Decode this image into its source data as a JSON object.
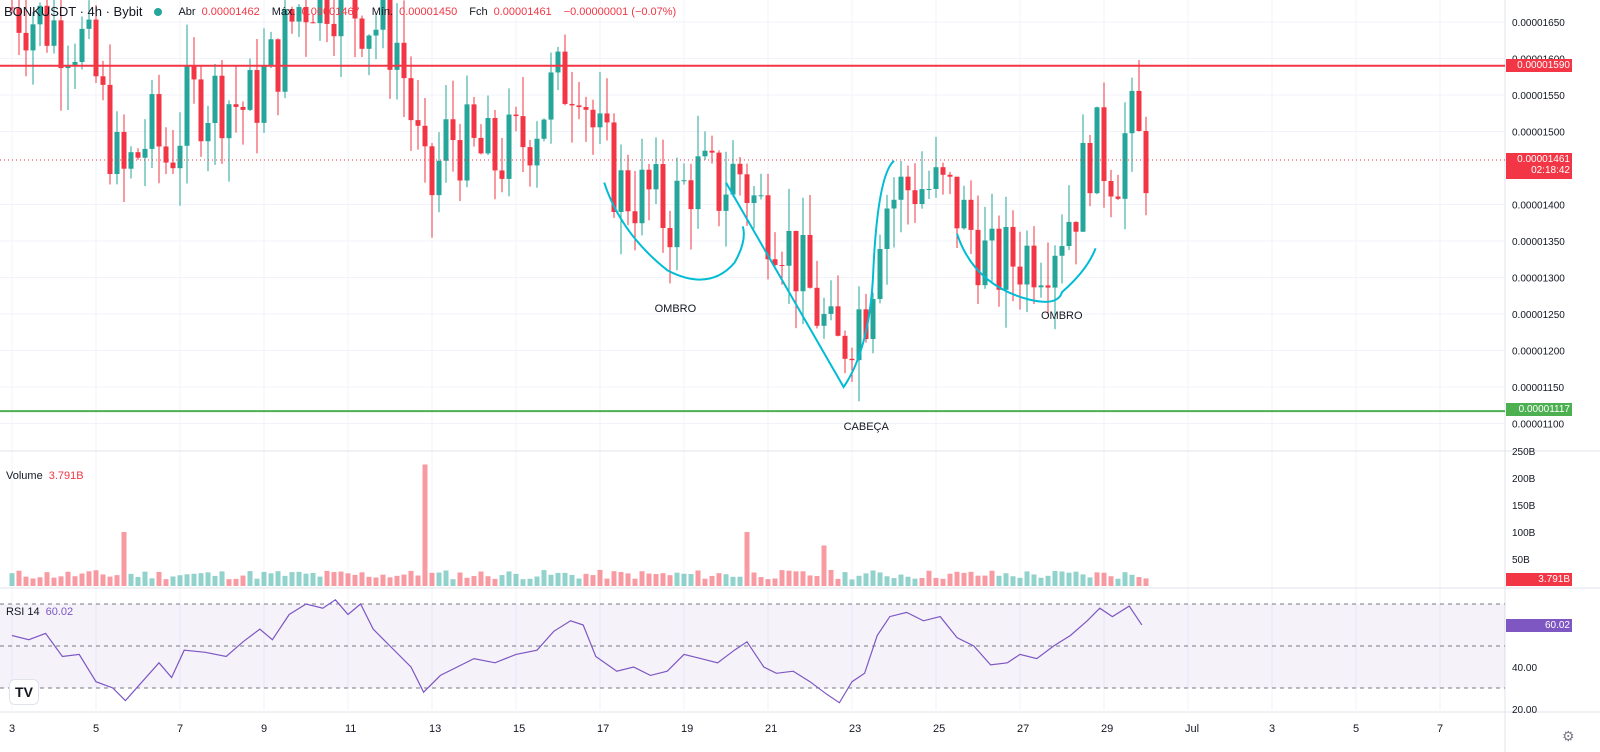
{
  "header": {
    "symbol": "BONKUSDT · 4h · Bybit",
    "open_label": "Abr",
    "open_value": "0.00001462",
    "high_label": "Máx.",
    "high_value": "0.00001467",
    "low_label": "Mín.",
    "low_value": "0.00001450",
    "close_label": "Fch",
    "close_value": "0.00001461",
    "change": "−0.00000001 (−0.07%)"
  },
  "volume_pane": {
    "label": "Volume",
    "value": "3.791B",
    "tag": "3.791B"
  },
  "rsi_pane": {
    "label": "RSI 14",
    "value": "60.02",
    "tag": "60.02"
  },
  "price_tags": {
    "resistance": "0.00001590",
    "current": "0.00001461",
    "countdown": "02:18:42",
    "support": "0.00001117"
  },
  "annotations": {
    "left_shoulder": "OMBRO",
    "head": "CABEÇA",
    "right_shoulder": "OMBRO"
  },
  "colors": {
    "up": "#26a69a",
    "down": "#f23645",
    "resistance": "#f23645",
    "support": "#4caf50",
    "rsi_line": "#7e57c2",
    "pattern": "#00bcd4"
  },
  "chart_data": [
    {
      "type": "candlestick",
      "title": "BONKUSDT · 4h · Bybit",
      "ylim": [
        1.08e-05,
        1.67e-05
      ],
      "y_ticks": [
        "0.00001650",
        "0.00001600",
        "0.00001550",
        "0.00001500",
        "0.00001400",
        "0.00001350",
        "0.00001300",
        "0.00001250",
        "0.00001200",
        "0.00001150",
        "0.00001100"
      ],
      "x_ticks": [
        "3",
        "5",
        "7",
        "9",
        "11",
        "13",
        "15",
        "17",
        "19",
        "21",
        "23",
        "25",
        "27",
        "29",
        "Jul",
        "3",
        "5",
        "7"
      ],
      "horizontal_lines": [
        {
          "name": "resistance",
          "value": 1.59e-05
        },
        {
          "name": "support",
          "value": 1.117e-05
        }
      ],
      "pattern": "head-and-shoulders",
      "price_anchors": [
        {
          "day": 3.0,
          "price": 1.67e-05
        },
        {
          "day": 4.6,
          "price": 1.63e-05
        },
        {
          "day": 5.0,
          "price": 1.57e-05
        },
        {
          "day": 5.6,
          "price": 1.43e-05
        },
        {
          "day": 6.3,
          "price": 1.5e-05
        },
        {
          "day": 6.7,
          "price": 1.46e-05
        },
        {
          "day": 7.2,
          "price": 1.54e-05
        },
        {
          "day": 8.0,
          "price": 1.55e-05
        },
        {
          "day": 8.6,
          "price": 1.53e-05
        },
        {
          "day": 9.3,
          "price": 1.6e-05
        },
        {
          "day": 9.8,
          "price": 1.67e-05
        },
        {
          "day": 10.3,
          "price": 1.7e-05
        },
        {
          "day": 11.0,
          "price": 1.68e-05
        },
        {
          "day": 11.6,
          "price": 1.65e-05
        },
        {
          "day": 12.2,
          "price": 1.62e-05
        },
        {
          "day": 12.9,
          "price": 1.4e-05
        },
        {
          "day": 13.4,
          "price": 1.5e-05
        },
        {
          "day": 14.0,
          "price": 1.47e-05
        },
        {
          "day": 14.5,
          "price": 1.46e-05
        },
        {
          "day": 15.2,
          "price": 1.49e-05
        },
        {
          "day": 15.8,
          "price": 1.55e-05
        },
        {
          "day": 16.5,
          "price": 1.59e-05
        },
        {
          "day": 16.9,
          "price": 1.49e-05
        },
        {
          "day": 17.5,
          "price": 1.42e-05
        },
        {
          "day": 18.2,
          "price": 1.41e-05
        },
        {
          "day": 18.6,
          "price": 1.38e-05
        },
        {
          "day": 19.2,
          "price": 1.44e-05
        },
        {
          "day": 19.8,
          "price": 1.42e-05
        },
        {
          "day": 20.3,
          "price": 1.45e-05
        },
        {
          "day": 20.7,
          "price": 1.4e-05
        },
        {
          "day": 21.3,
          "price": 1.37e-05
        },
        {
          "day": 21.9,
          "price": 1.29e-05
        },
        {
          "day": 22.3,
          "price": 1.24e-05
        },
        {
          "day": 22.6,
          "price": 1.19e-05
        },
        {
          "day": 23.0,
          "price": 1.24e-05
        },
        {
          "day": 23.4,
          "price": 1.27e-05
        },
        {
          "day": 23.7,
          "price": 1.4e-05
        },
        {
          "day": 24.5,
          "price": 1.43e-05
        },
        {
          "day": 25.3,
          "price": 1.41e-05
        },
        {
          "day": 25.9,
          "price": 1.36e-05
        },
        {
          "day": 26.3,
          "price": 1.31e-05
        },
        {
          "day": 27.0,
          "price": 1.33e-05
        },
        {
          "day": 27.6,
          "price": 1.34e-05
        },
        {
          "day": 28.3,
          "price": 1.4e-05
        },
        {
          "day": 28.7,
          "price": 1.48e-05
        },
        {
          "day": 29.3,
          "price": 1.45e-05
        },
        {
          "day": 29.6,
          "price": 1.51e-05
        },
        {
          "day": 30.0,
          "price": 1.46e-05
        }
      ]
    },
    {
      "type": "bar",
      "title": "Volume",
      "ylim": [
        0,
        250
      ],
      "y_ticks": [
        "250B",
        "200B",
        "150B",
        "100B",
        "50B"
      ],
      "last_value": 3.791,
      "spikes": [
        {
          "day": 5.6,
          "value": 100
        },
        {
          "day": 12.8,
          "value": 225
        },
        {
          "day": 20.5,
          "value": 100
        },
        {
          "day": 22.4,
          "value": 75
        }
      ]
    },
    {
      "type": "line",
      "title": "RSI 14",
      "ylim": [
        15,
        75
      ],
      "y_ticks": [
        "40.00",
        "20.00"
      ],
      "bands": [
        70,
        50,
        30
      ],
      "last_value": 60.02,
      "points": [
        {
          "day": 3.0,
          "rsi": 55
        },
        {
          "day": 3.4,
          "rsi": 53
        },
        {
          "day": 3.8,
          "rsi": 56
        },
        {
          "day": 4.2,
          "rsi": 45
        },
        {
          "day": 4.6,
          "rsi": 46
        },
        {
          "day": 5.0,
          "rsi": 33
        },
        {
          "day": 5.4,
          "rsi": 30
        },
        {
          "day": 5.7,
          "rsi": 24
        },
        {
          "day": 6.1,
          "rsi": 33
        },
        {
          "day": 6.5,
          "rsi": 42
        },
        {
          "day": 6.8,
          "rsi": 35
        },
        {
          "day": 7.1,
          "rsi": 48
        },
        {
          "day": 7.6,
          "rsi": 47
        },
        {
          "day": 8.1,
          "rsi": 45
        },
        {
          "day": 8.5,
          "rsi": 52
        },
        {
          "day": 8.9,
          "rsi": 58
        },
        {
          "day": 9.2,
          "rsi": 53
        },
        {
          "day": 9.6,
          "rsi": 65
        },
        {
          "day": 10.0,
          "rsi": 70
        },
        {
          "day": 10.4,
          "rsi": 68
        },
        {
          "day": 10.7,
          "rsi": 72
        },
        {
          "day": 11.0,
          "rsi": 65
        },
        {
          "day": 11.3,
          "rsi": 70
        },
        {
          "day": 11.6,
          "rsi": 58
        },
        {
          "day": 12.0,
          "rsi": 50
        },
        {
          "day": 12.5,
          "rsi": 40
        },
        {
          "day": 12.8,
          "rsi": 28
        },
        {
          "day": 13.2,
          "rsi": 36
        },
        {
          "day": 13.6,
          "rsi": 40
        },
        {
          "day": 14.0,
          "rsi": 44
        },
        {
          "day": 14.5,
          "rsi": 42
        },
        {
          "day": 15.0,
          "rsi": 46
        },
        {
          "day": 15.5,
          "rsi": 48
        },
        {
          "day": 15.9,
          "rsi": 57
        },
        {
          "day": 16.3,
          "rsi": 62
        },
        {
          "day": 16.6,
          "rsi": 60
        },
        {
          "day": 16.9,
          "rsi": 45
        },
        {
          "day": 17.4,
          "rsi": 38
        },
        {
          "day": 17.8,
          "rsi": 40
        },
        {
          "day": 18.2,
          "rsi": 36
        },
        {
          "day": 18.6,
          "rsi": 38
        },
        {
          "day": 19.0,
          "rsi": 46
        },
        {
          "day": 19.4,
          "rsi": 44
        },
        {
          "day": 19.8,
          "rsi": 42
        },
        {
          "day": 20.2,
          "rsi": 48
        },
        {
          "day": 20.5,
          "rsi": 52
        },
        {
          "day": 20.9,
          "rsi": 40
        },
        {
          "day": 21.2,
          "rsi": 37
        },
        {
          "day": 21.6,
          "rsi": 38
        },
        {
          "day": 22.0,
          "rsi": 33
        },
        {
          "day": 22.4,
          "rsi": 27
        },
        {
          "day": 22.7,
          "rsi": 23
        },
        {
          "day": 23.0,
          "rsi": 33
        },
        {
          "day": 23.3,
          "rsi": 37
        },
        {
          "day": 23.6,
          "rsi": 55
        },
        {
          "day": 23.9,
          "rsi": 64
        },
        {
          "day": 24.3,
          "rsi": 66
        },
        {
          "day": 24.7,
          "rsi": 62
        },
        {
          "day": 25.1,
          "rsi": 64
        },
        {
          "day": 25.5,
          "rsi": 54
        },
        {
          "day": 25.9,
          "rsi": 50
        },
        {
          "day": 26.3,
          "rsi": 41
        },
        {
          "day": 26.7,
          "rsi": 42
        },
        {
          "day": 27.0,
          "rsi": 46
        },
        {
          "day": 27.4,
          "rsi": 44
        },
        {
          "day": 27.8,
          "rsi": 50
        },
        {
          "day": 28.2,
          "rsi": 55
        },
        {
          "day": 28.6,
          "rsi": 62
        },
        {
          "day": 28.9,
          "rsi": 68
        },
        {
          "day": 29.2,
          "rsi": 64
        },
        {
          "day": 29.6,
          "rsi": 69
        },
        {
          "day": 29.9,
          "rsi": 60.02
        }
      ]
    }
  ]
}
